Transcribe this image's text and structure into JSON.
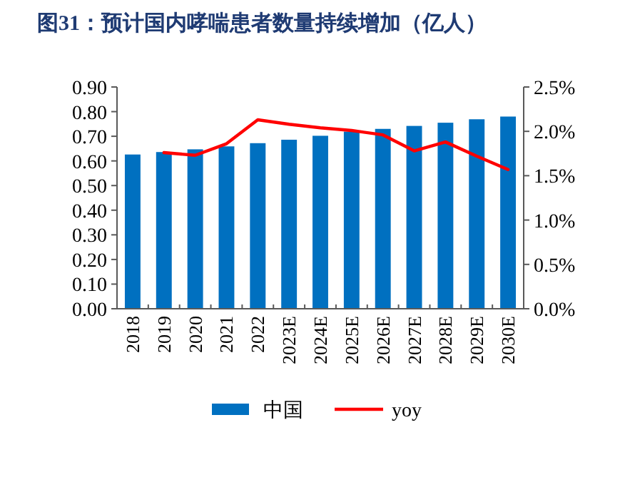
{
  "chart_data": {
    "type": "bar",
    "title": "图31：预计国内哮喘患者数量持续增加（亿人）",
    "categories": [
      "2018",
      "2019",
      "2020",
      "2021",
      "2022",
      "2023E",
      "2024E",
      "2025E",
      "2026E",
      "2027E",
      "2028E",
      "2029E",
      "2030E"
    ],
    "series": [
      {
        "name": "中国",
        "color": "#0070c0",
        "values": [
          0.626,
          0.636,
          0.647,
          0.659,
          0.672,
          0.686,
          0.702,
          0.719,
          0.73,
          0.742,
          0.755,
          0.769,
          0.78
        ]
      },
      {
        "name": "yoy",
        "type": "line",
        "axis": "y2",
        "color": "#ff0000",
        "values": [
          null,
          1.76,
          1.73,
          1.86,
          2.13,
          2.08,
          2.04,
          2.01,
          1.96,
          1.78,
          1.88,
          1.72,
          1.57
        ]
      }
    ],
    "ylim": [
      0,
      0.9
    ],
    "yticks": [
      {
        "value": 0,
        "label": "0.00"
      },
      {
        "value": 0.1,
        "label": "0.10"
      },
      {
        "value": 0.2,
        "label": "0.20"
      },
      {
        "value": 0.3,
        "label": "0.30"
      },
      {
        "value": 0.4,
        "label": "0.40"
      },
      {
        "value": 0.5,
        "label": "0.50"
      },
      {
        "value": 0.6,
        "label": "0.60"
      },
      {
        "value": 0.7,
        "label": "0.70"
      },
      {
        "value": 0.8,
        "label": "0.80"
      },
      {
        "value": 0.9,
        "label": "0.90"
      }
    ],
    "y2lim": [
      0,
      2.5
    ],
    "y2ticks": [
      {
        "value": 0,
        "label": "0.0%"
      },
      {
        "value": 0.5,
        "label": "0.5%"
      },
      {
        "value": 1,
        "label": "1.0%"
      },
      {
        "value": 1.5,
        "label": "1.5%"
      },
      {
        "value": 2,
        "label": "2.0%"
      },
      {
        "value": 2.5,
        "label": "2.5%"
      }
    ],
    "legend": "bottom",
    "grid": false
  }
}
